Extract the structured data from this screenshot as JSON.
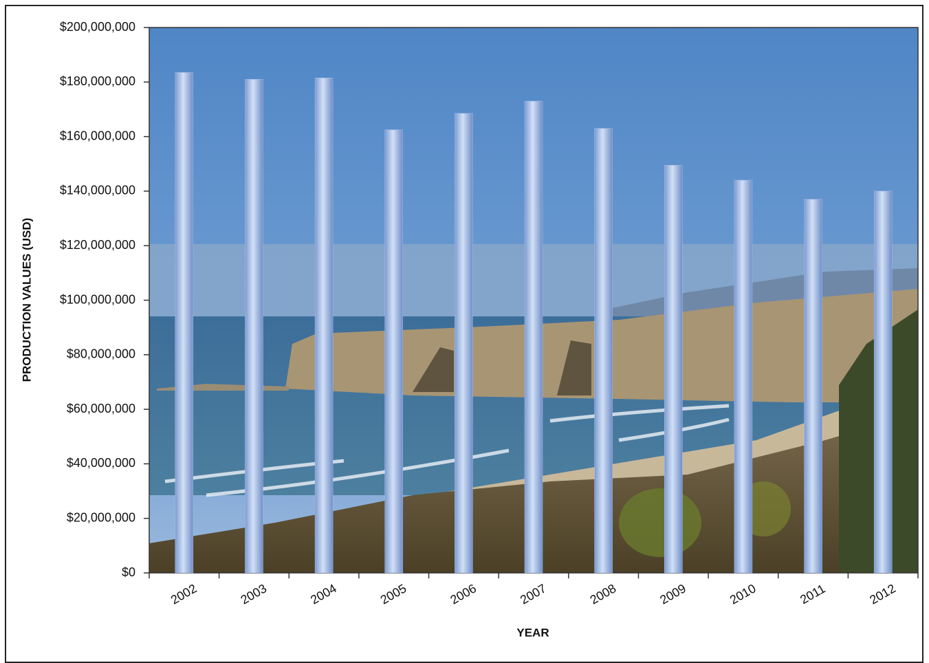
{
  "chart_data": {
    "type": "bar",
    "x_label": "YEAR",
    "y_label": "PRODUCTION VALUES (USD)",
    "categories": [
      "2002",
      "2003",
      "2004",
      "2005",
      "2006",
      "2007",
      "2008",
      "2009",
      "2010",
      "2011",
      "2012"
    ],
    "values": [
      183500000,
      181000000,
      181500000,
      162500000,
      168500000,
      173000000,
      163000000,
      149500000,
      144000000,
      137000000,
      140000000
    ],
    "color": "#a9c1ec",
    "ylim": [
      0,
      200000000
    ],
    "yticks": [
      {
        "value": 0,
        "label": "$0"
      },
      {
        "value": 20000000,
        "label": "$20,000,000"
      },
      {
        "value": 40000000,
        "label": "$40,000,000"
      },
      {
        "value": 60000000,
        "label": "$60,000,000"
      },
      {
        "value": 80000000,
        "label": "$80,000,000"
      },
      {
        "value": 100000000,
        "label": "$100,000,000"
      },
      {
        "value": 120000000,
        "label": "$120,000,000"
      },
      {
        "value": 140000000,
        "label": "$140,000,000"
      },
      {
        "value": 160000000,
        "label": "$160,000,000"
      },
      {
        "value": 180000000,
        "label": "$180,000,000"
      },
      {
        "value": 200000000,
        "label": "$200,000,000"
      }
    ]
  }
}
